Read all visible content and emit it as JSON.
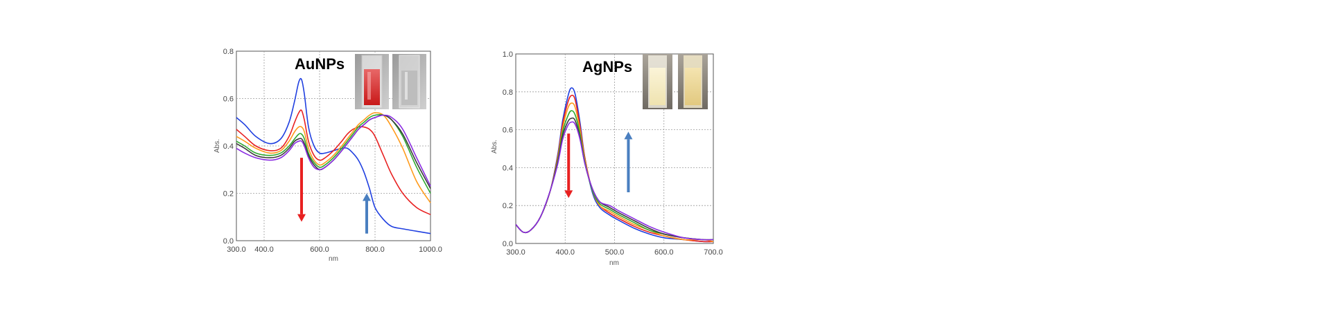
{
  "chart_data": [
    {
      "type": "line",
      "title": "AuNPs",
      "xlabel": "nm",
      "ylabel": "Abs.",
      "xlim": [
        300,
        1000
      ],
      "ylim": [
        0,
        0.8
      ],
      "x_ticks": [
        "300.0",
        "400.0",
        "600.0",
        "800.0",
        "1000.0"
      ],
      "y_ticks": [
        "0.0",
        "0.2",
        "0.4",
        "0.6",
        "0.8"
      ],
      "grid": true,
      "series": [
        {
          "color": "#1f3fe0",
          "x": [
            300,
            330,
            370,
            420,
            460,
            490,
            510,
            525,
            535,
            545,
            560,
            580,
            600,
            620,
            650,
            680,
            700,
            720,
            740,
            760,
            780,
            800,
            830,
            860,
            900,
            950,
            1000
          ],
          "y": [
            0.52,
            0.49,
            0.44,
            0.41,
            0.43,
            0.5,
            0.59,
            0.67,
            0.68,
            0.62,
            0.48,
            0.4,
            0.37,
            0.37,
            0.38,
            0.39,
            0.39,
            0.37,
            0.34,
            0.29,
            0.22,
            0.14,
            0.09,
            0.06,
            0.05,
            0.04,
            0.03
          ]
        },
        {
          "color": "#e82020",
          "x": [
            300,
            330,
            370,
            420,
            460,
            490,
            510,
            525,
            535,
            545,
            560,
            580,
            600,
            620,
            650,
            680,
            700,
            720,
            740,
            760,
            780,
            800,
            830,
            860,
            900,
            950,
            1000
          ],
          "y": [
            0.47,
            0.44,
            0.4,
            0.38,
            0.39,
            0.44,
            0.5,
            0.54,
            0.55,
            0.51,
            0.42,
            0.36,
            0.34,
            0.35,
            0.38,
            0.42,
            0.45,
            0.47,
            0.48,
            0.48,
            0.47,
            0.44,
            0.36,
            0.28,
            0.2,
            0.14,
            0.11
          ]
        },
        {
          "color": "#ff9a1a",
          "x": [
            300,
            330,
            370,
            420,
            460,
            490,
            510,
            525,
            535,
            545,
            560,
            580,
            600,
            620,
            650,
            680,
            700,
            720,
            740,
            760,
            780,
            800,
            830,
            860,
            900,
            950,
            1000
          ],
          "y": [
            0.44,
            0.42,
            0.39,
            0.37,
            0.38,
            0.42,
            0.46,
            0.48,
            0.48,
            0.46,
            0.39,
            0.34,
            0.32,
            0.33,
            0.36,
            0.4,
            0.43,
            0.46,
            0.49,
            0.51,
            0.53,
            0.54,
            0.53,
            0.48,
            0.39,
            0.25,
            0.16
          ]
        },
        {
          "color": "#2ea82e",
          "x": [
            300,
            330,
            370,
            420,
            460,
            490,
            510,
            525,
            535,
            545,
            560,
            580,
            600,
            620,
            650,
            680,
            700,
            720,
            740,
            760,
            780,
            800,
            830,
            860,
            900,
            950,
            1000
          ],
          "y": [
            0.42,
            0.4,
            0.37,
            0.36,
            0.37,
            0.4,
            0.43,
            0.45,
            0.45,
            0.43,
            0.37,
            0.33,
            0.31,
            0.32,
            0.35,
            0.39,
            0.42,
            0.45,
            0.48,
            0.5,
            0.52,
            0.53,
            0.53,
            0.51,
            0.44,
            0.31,
            0.2
          ]
        },
        {
          "color": "#3a3a3a",
          "x": [
            300,
            330,
            370,
            420,
            460,
            490,
            510,
            525,
            535,
            545,
            560,
            580,
            600,
            620,
            650,
            680,
            700,
            720,
            740,
            760,
            780,
            800,
            830,
            860,
            900,
            950,
            1000
          ],
          "y": [
            0.41,
            0.39,
            0.36,
            0.35,
            0.36,
            0.39,
            0.42,
            0.43,
            0.43,
            0.41,
            0.36,
            0.32,
            0.3,
            0.31,
            0.34,
            0.38,
            0.41,
            0.44,
            0.47,
            0.49,
            0.51,
            0.52,
            0.53,
            0.51,
            0.45,
            0.33,
            0.22
          ]
        },
        {
          "color": "#8a2be2",
          "x": [
            300,
            330,
            370,
            420,
            460,
            490,
            510,
            525,
            535,
            545,
            560,
            580,
            600,
            620,
            650,
            680,
            700,
            720,
            740,
            760,
            780,
            800,
            830,
            860,
            900,
            950,
            1000
          ],
          "y": [
            0.39,
            0.37,
            0.35,
            0.34,
            0.35,
            0.38,
            0.41,
            0.42,
            0.42,
            0.4,
            0.35,
            0.31,
            0.3,
            0.31,
            0.34,
            0.38,
            0.41,
            0.44,
            0.47,
            0.49,
            0.51,
            0.52,
            0.53,
            0.52,
            0.47,
            0.35,
            0.23
          ]
        }
      ],
      "annotations": [
        {
          "type": "arrow",
          "direction": "down",
          "color": "#e82020",
          "x": 535,
          "y_from": 0.35,
          "y_to": 0.08
        },
        {
          "type": "arrow",
          "direction": "up",
          "color": "#4a7fc0",
          "x": 770,
          "y_from": 0.03,
          "y_to": 0.2
        }
      ]
    },
    {
      "type": "line",
      "title": "AgNPs",
      "xlabel": "nm",
      "ylabel": "Abs.",
      "xlim": [
        300,
        700
      ],
      "ylim": [
        0,
        1.0
      ],
      "x_ticks": [
        "300.0",
        "400.0",
        "500.0",
        "600.0",
        "700.0"
      ],
      "y_ticks": [
        "0.0",
        "0.2",
        "0.4",
        "0.6",
        "0.8",
        "1.0"
      ],
      "grid": true,
      "series": [
        {
          "color": "#1f3fe0",
          "x": [
            300,
            315,
            330,
            350,
            370,
            385,
            395,
            405,
            412,
            420,
            430,
            440,
            455,
            470,
            490,
            510,
            540,
            570,
            600,
            640,
            680,
            700
          ],
          "y": [
            0.1,
            0.06,
            0.07,
            0.14,
            0.28,
            0.47,
            0.65,
            0.77,
            0.82,
            0.79,
            0.64,
            0.45,
            0.27,
            0.19,
            0.15,
            0.12,
            0.08,
            0.05,
            0.03,
            0.02,
            0.01,
            0.01
          ]
        },
        {
          "color": "#e82020",
          "x": [
            300,
            315,
            330,
            350,
            370,
            385,
            395,
            405,
            412,
            420,
            430,
            440,
            455,
            470,
            490,
            510,
            540,
            570,
            600,
            640,
            680,
            700
          ],
          "y": [
            0.1,
            0.06,
            0.07,
            0.14,
            0.28,
            0.46,
            0.63,
            0.74,
            0.78,
            0.76,
            0.62,
            0.45,
            0.28,
            0.2,
            0.16,
            0.13,
            0.09,
            0.06,
            0.04,
            0.02,
            0.01,
            0.01
          ]
        },
        {
          "color": "#ff9a1a",
          "x": [
            300,
            315,
            330,
            350,
            370,
            385,
            395,
            405,
            412,
            420,
            430,
            440,
            455,
            470,
            490,
            510,
            540,
            570,
            600,
            640,
            680,
            700
          ],
          "y": [
            0.1,
            0.06,
            0.07,
            0.14,
            0.28,
            0.45,
            0.61,
            0.71,
            0.74,
            0.72,
            0.6,
            0.44,
            0.28,
            0.2,
            0.17,
            0.14,
            0.1,
            0.07,
            0.04,
            0.02,
            0.02,
            0.01
          ]
        },
        {
          "color": "#2ea82e",
          "x": [
            300,
            315,
            330,
            350,
            370,
            385,
            395,
            405,
            412,
            420,
            430,
            440,
            455,
            470,
            490,
            510,
            540,
            570,
            600,
            640,
            680,
            700
          ],
          "y": [
            0.1,
            0.06,
            0.07,
            0.14,
            0.28,
            0.44,
            0.59,
            0.67,
            0.7,
            0.68,
            0.58,
            0.43,
            0.28,
            0.21,
            0.18,
            0.15,
            0.11,
            0.07,
            0.05,
            0.03,
            0.02,
            0.02
          ]
        },
        {
          "color": "#3a3a3a",
          "x": [
            300,
            315,
            330,
            350,
            370,
            385,
            395,
            405,
            412,
            420,
            430,
            440,
            455,
            470,
            490,
            510,
            540,
            570,
            600,
            640,
            680,
            700
          ],
          "y": [
            0.1,
            0.06,
            0.07,
            0.14,
            0.28,
            0.43,
            0.57,
            0.64,
            0.66,
            0.65,
            0.56,
            0.42,
            0.29,
            0.22,
            0.19,
            0.16,
            0.12,
            0.08,
            0.05,
            0.03,
            0.02,
            0.02
          ]
        },
        {
          "color": "#8a2be2",
          "x": [
            300,
            315,
            330,
            350,
            370,
            385,
            395,
            405,
            412,
            420,
            430,
            440,
            455,
            470,
            490,
            510,
            540,
            570,
            600,
            640,
            680,
            700
          ],
          "y": [
            0.1,
            0.06,
            0.07,
            0.14,
            0.28,
            0.42,
            0.55,
            0.62,
            0.64,
            0.63,
            0.55,
            0.42,
            0.29,
            0.22,
            0.2,
            0.17,
            0.13,
            0.09,
            0.06,
            0.03,
            0.02,
            0.02
          ]
        }
      ],
      "annotations": [
        {
          "type": "arrow",
          "direction": "down",
          "color": "#e82020",
          "x": 407,
          "y_from": 0.58,
          "y_to": 0.24
        },
        {
          "type": "arrow",
          "direction": "up",
          "color": "#4a7fc0",
          "x": 528,
          "y_from": 0.27,
          "y_to": 0.59
        }
      ]
    }
  ]
}
